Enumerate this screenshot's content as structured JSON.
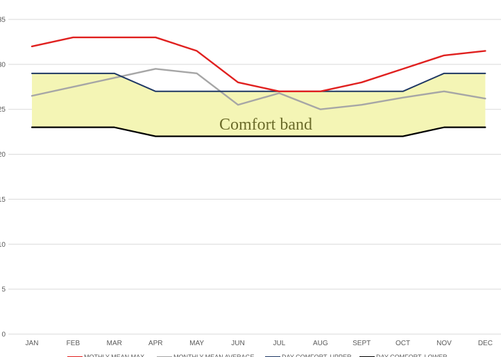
{
  "chart_data": {
    "type": "line",
    "categories": [
      "JAN",
      "FEB",
      "MAR",
      "APR",
      "MAY",
      "JUN",
      "JUL",
      "AUG",
      "SEPT",
      "OCT",
      "NOV",
      "DEC"
    ],
    "ylim": [
      0,
      35
    ],
    "yticks": [
      0,
      5,
      10,
      15,
      20,
      25,
      30,
      35
    ],
    "ytick_labels": [
      "0",
      "5",
      "10",
      "15",
      "20",
      "25",
      "30",
      "35"
    ],
    "grid": true,
    "annotation": "Comfort band",
    "band_color": "#f4f5b5",
    "series": [
      {
        "name": "MOTHLY MEAN MAX",
        "color": "#e0201f",
        "values": [
          32,
          33,
          33,
          33,
          31.5,
          28,
          27,
          27,
          28,
          29.5,
          31,
          31.5
        ]
      },
      {
        "name": "MONTHLY MEAN AVERAGE",
        "color": "#a6a6a6",
        "values": [
          26.5,
          27.5,
          28.5,
          29.5,
          29,
          25.5,
          26.8,
          25,
          25.5,
          26.3,
          27,
          26.2
        ]
      },
      {
        "name": "DAY COMFORT, UPPER",
        "color": "#1f3864",
        "values": [
          29,
          29,
          29,
          27,
          27,
          27,
          27,
          27,
          27,
          27,
          29,
          29
        ]
      },
      {
        "name": "DAY COMFORT, LOWER",
        "color": "#000000",
        "values": [
          23,
          23,
          23,
          22,
          22,
          22,
          22,
          22,
          22,
          22,
          23,
          23
        ]
      }
    ]
  }
}
